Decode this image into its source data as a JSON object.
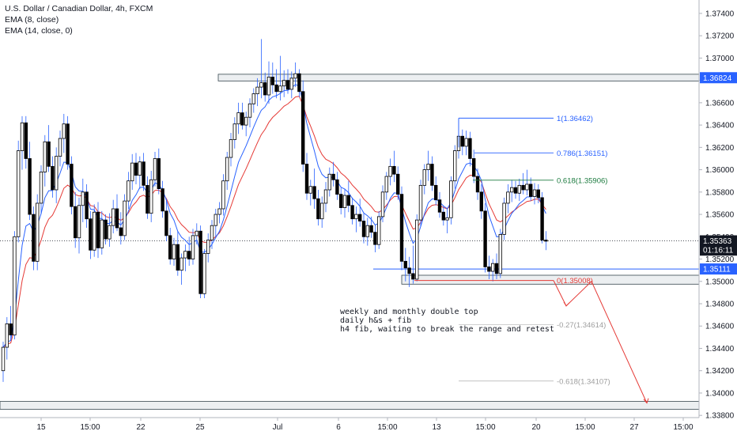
{
  "legend": {
    "symbol_line": "U.S. Dollar / Canadian Dollar, 4h, FXCM",
    "ema_fast": "EMA (8, close)",
    "ema_slow": "EMA (14, close, 0)"
  },
  "colors": {
    "candle": "#000000",
    "ema_fast": "#2962ff",
    "ema_slow": "#e53935",
    "fib_blue": "#2962ff",
    "fib_green": "#1b7a3e",
    "fib_gray": "#9e9e9e",
    "projection": "#e53935",
    "price_tag_blue": "#2962ff",
    "price_tag_black": "#131722"
  },
  "chart_data": {
    "type": "candlestick",
    "symbol": "U.S. Dollar / Canadian Dollar",
    "interval": "4h",
    "source": "FXCM",
    "ylim": [
      1.3378,
      1.3752
    ],
    "y_ticks": [
      "1.37400",
      "1.37200",
      "1.37000",
      "1.36800",
      "1.36600",
      "1.36400",
      "1.36200",
      "1.36000",
      "1.35800",
      "1.35600",
      "1.35400",
      "1.35200",
      "1.35000",
      "1.34800",
      "1.34600",
      "1.34400",
      "1.34200",
      "1.34000",
      "1.33800"
    ],
    "x_ticks": [
      "15",
      "15:00",
      "22",
      "25",
      "Jul",
      "6",
      "15:00",
      "13",
      "15:00",
      "20",
      "15:00",
      "27",
      "15:00"
    ],
    "price_tags": [
      {
        "label": "1.36824",
        "value": 1.36824,
        "style": "blue"
      },
      {
        "label": "1.35363",
        "value": 1.35363,
        "style": "black"
      },
      {
        "label": "01:16:11",
        "value": 1.3528,
        "style": "black"
      },
      {
        "label": "1.35111",
        "value": 1.35111,
        "style": "blue"
      }
    ],
    "last_price": 1.35363,
    "resistance_zone": [
      1.36795,
      1.36855
    ],
    "support_zone": [
      1.34975,
      1.35055
    ],
    "bottom_zone": [
      1.33855,
      1.33925
    ],
    "fib_levels": [
      {
        "label": "1(1.36462)",
        "value": 1.36462,
        "color": "blue"
      },
      {
        "label": "0.786(1.36151)",
        "value": 1.36151,
        "color": "blue"
      },
      {
        "label": "0.618(1.35906)",
        "value": 1.35906,
        "color": "green"
      },
      {
        "label": "0(1.35008)",
        "value": 1.35008,
        "color": "red"
      },
      {
        "label": "-0.27(1.34614)",
        "value": 1.34614,
        "color": "gray"
      },
      {
        "label": "-0.618(1.34107)",
        "value": 1.34107,
        "color": "gray"
      }
    ],
    "support_line": 1.35111,
    "annotation": [
      "weekly and monthly double top",
      "daily h&s + fib",
      "h4 fib, waiting to break the range and retest"
    ],
    "projection_path": [
      [
        1.35008
      ],
      [
        1.3478
      ],
      [
        1.35
      ],
      [
        1.3391
      ]
    ],
    "candles": [
      [
        1.342,
        1.3446,
        1.341,
        1.3441
      ],
      [
        1.3441,
        1.3468,
        1.343,
        1.3462
      ],
      [
        1.3462,
        1.3478,
        1.3447,
        1.3452
      ],
      [
        1.3452,
        1.3545,
        1.3448,
        1.354
      ],
      [
        1.354,
        1.3626,
        1.3535,
        1.3617
      ],
      [
        1.3617,
        1.3648,
        1.36,
        1.3642
      ],
      [
        1.3642,
        1.3648,
        1.3601,
        1.361
      ],
      [
        1.361,
        1.3625,
        1.3555,
        1.356
      ],
      [
        1.356,
        1.3567,
        1.351,
        1.3518
      ],
      [
        1.3518,
        1.3578,
        1.351,
        1.357
      ],
      [
        1.357,
        1.3604,
        1.356,
        1.3598
      ],
      [
        1.3598,
        1.3631,
        1.3585,
        1.3625
      ],
      [
        1.3625,
        1.364,
        1.3598,
        1.3603
      ],
      [
        1.3603,
        1.3612,
        1.3575,
        1.3582
      ],
      [
        1.3582,
        1.362,
        1.357,
        1.3612
      ],
      [
        1.3612,
        1.3635,
        1.3603,
        1.3628
      ],
      [
        1.3628,
        1.365,
        1.3615,
        1.3641
      ],
      [
        1.3641,
        1.3648,
        1.36,
        1.3605
      ],
      [
        1.3605,
        1.3612,
        1.356,
        1.3567
      ],
      [
        1.3567,
        1.358,
        1.353,
        1.3539
      ],
      [
        1.3539,
        1.3575,
        1.3525,
        1.3568
      ],
      [
        1.3568,
        1.3592,
        1.3553,
        1.358
      ],
      [
        1.358,
        1.3587,
        1.3548,
        1.3556
      ],
      [
        1.3556,
        1.3563,
        1.352,
        1.3528
      ],
      [
        1.3528,
        1.3569,
        1.3522,
        1.3562
      ],
      [
        1.3562,
        1.3571,
        1.3521,
        1.353
      ],
      [
        1.353,
        1.3563,
        1.3524,
        1.3555
      ],
      [
        1.3555,
        1.356,
        1.3533,
        1.3538
      ],
      [
        1.3538,
        1.3561,
        1.3531,
        1.355
      ],
      [
        1.355,
        1.3573,
        1.3543,
        1.3565
      ],
      [
        1.3565,
        1.3578,
        1.3545,
        1.3548
      ],
      [
        1.3548,
        1.3562,
        1.3533,
        1.3541
      ],
      [
        1.3541,
        1.3578,
        1.3537,
        1.3572
      ],
      [
        1.3572,
        1.3598,
        1.3565,
        1.359
      ],
      [
        1.359,
        1.3614,
        1.3582,
        1.3606
      ],
      [
        1.3606,
        1.3615,
        1.3587,
        1.3595
      ],
      [
        1.3595,
        1.3612,
        1.3583,
        1.3607
      ],
      [
        1.3607,
        1.3615,
        1.3581,
        1.3586
      ],
      [
        1.3586,
        1.3594,
        1.3556,
        1.3561
      ],
      [
        1.3561,
        1.3599,
        1.3553,
        1.3591
      ],
      [
        1.3591,
        1.3616,
        1.3585,
        1.361
      ],
      [
        1.361,
        1.3619,
        1.3578,
        1.3583
      ],
      [
        1.3583,
        1.359,
        1.3557,
        1.3563
      ],
      [
        1.3563,
        1.3574,
        1.3536,
        1.3541
      ],
      [
        1.3541,
        1.3548,
        1.3515,
        1.352
      ],
      [
        1.352,
        1.3539,
        1.3514,
        1.3533
      ],
      [
        1.3533,
        1.3545,
        1.3505,
        1.351
      ],
      [
        1.351,
        1.3525,
        1.3497,
        1.3521
      ],
      [
        1.3521,
        1.3533,
        1.3509,
        1.3527
      ],
      [
        1.3527,
        1.354,
        1.3514,
        1.352
      ],
      [
        1.352,
        1.3547,
        1.3515,
        1.3541
      ],
      [
        1.3541,
        1.3552,
        1.3533,
        1.3545
      ],
      [
        1.3545,
        1.355,
        1.3485,
        1.3489
      ],
      [
        1.3489,
        1.3529,
        1.3485,
        1.3525
      ],
      [
        1.3525,
        1.3543,
        1.3517,
        1.3537
      ],
      [
        1.3537,
        1.3555,
        1.3529,
        1.355
      ],
      [
        1.355,
        1.3565,
        1.354,
        1.356
      ],
      [
        1.356,
        1.3571,
        1.3552,
        1.3565
      ],
      [
        1.3565,
        1.3596,
        1.3559,
        1.359
      ],
      [
        1.359,
        1.3616,
        1.3582,
        1.3611
      ],
      [
        1.3611,
        1.3633,
        1.3603,
        1.3627
      ],
      [
        1.3627,
        1.3647,
        1.3619,
        1.3641
      ],
      [
        1.3641,
        1.366,
        1.3632,
        1.3651
      ],
      [
        1.3651,
        1.366,
        1.3636,
        1.364
      ],
      [
        1.364,
        1.3652,
        1.363,
        1.3647
      ],
      [
        1.3647,
        1.3664,
        1.3638,
        1.3659
      ],
      [
        1.3659,
        1.3673,
        1.3651,
        1.3668
      ],
      [
        1.3668,
        1.3682,
        1.3657,
        1.3674
      ],
      [
        1.3674,
        1.3717,
        1.3664,
        1.3678
      ],
      [
        1.3678,
        1.3687,
        1.3661,
        1.3667
      ],
      [
        1.3667,
        1.3697,
        1.3659,
        1.3683
      ],
      [
        1.3683,
        1.3696,
        1.3668,
        1.3676
      ],
      [
        1.3676,
        1.369,
        1.3664,
        1.367
      ],
      [
        1.367,
        1.3702,
        1.3662,
        1.3675
      ],
      [
        1.3675,
        1.3689,
        1.3665,
        1.368
      ],
      [
        1.368,
        1.369,
        1.3668,
        1.3672
      ],
      [
        1.3672,
        1.3688,
        1.3664,
        1.3682
      ],
      [
        1.3682,
        1.3696,
        1.3674,
        1.3686
      ],
      [
        1.3686,
        1.369,
        1.3665,
        1.367
      ],
      [
        1.367,
        1.368,
        1.3598,
        1.3605
      ],
      [
        1.3605,
        1.3615,
        1.3573,
        1.3579
      ],
      [
        1.3579,
        1.3591,
        1.3568,
        1.3585
      ],
      [
        1.3585,
        1.3601,
        1.3565,
        1.3574
      ],
      [
        1.3574,
        1.3582,
        1.355,
        1.3556
      ],
      [
        1.3556,
        1.3576,
        1.3548,
        1.357
      ],
      [
        1.357,
        1.3589,
        1.3562,
        1.3582
      ],
      [
        1.3582,
        1.3602,
        1.3576,
        1.3596
      ],
      [
        1.3596,
        1.3607,
        1.3585,
        1.3591
      ],
      [
        1.3591,
        1.3598,
        1.3573,
        1.3578
      ],
      [
        1.3578,
        1.3584,
        1.356,
        1.3566
      ],
      [
        1.3566,
        1.3583,
        1.3557,
        1.3577
      ],
      [
        1.3577,
        1.359,
        1.3562,
        1.3568
      ],
      [
        1.3568,
        1.3575,
        1.3551,
        1.3556
      ],
      [
        1.3556,
        1.3567,
        1.3544,
        1.356
      ],
      [
        1.356,
        1.3574,
        1.3549,
        1.3554
      ],
      [
        1.3554,
        1.3561,
        1.3534,
        1.354
      ],
      [
        1.354,
        1.3557,
        1.3532,
        1.355
      ],
      [
        1.355,
        1.3558,
        1.3539,
        1.3544
      ],
      [
        1.3544,
        1.3551,
        1.3526,
        1.3533
      ],
      [
        1.3533,
        1.3563,
        1.3529,
        1.3558
      ],
      [
        1.3558,
        1.3586,
        1.3553,
        1.358
      ],
      [
        1.358,
        1.3598,
        1.3573,
        1.3594
      ],
      [
        1.3594,
        1.361,
        1.3586,
        1.3603
      ],
      [
        1.3603,
        1.3617,
        1.3589,
        1.3596
      ],
      [
        1.3596,
        1.3603,
        1.3573,
        1.3578
      ],
      [
        1.3578,
        1.3585,
        1.351,
        1.3518
      ],
      [
        1.3518,
        1.353,
        1.35,
        1.3512
      ],
      [
        1.3512,
        1.3522,
        1.3495,
        1.3507
      ],
      [
        1.3507,
        1.3532,
        1.3498,
        1.3502
      ],
      [
        1.3502,
        1.356,
        1.35,
        1.3555
      ],
      [
        1.3555,
        1.3591,
        1.3549,
        1.3586
      ],
      [
        1.3586,
        1.3605,
        1.3578,
        1.36
      ],
      [
        1.36,
        1.3617,
        1.359,
        1.3605
      ],
      [
        1.3605,
        1.3612,
        1.3581,
        1.3586
      ],
      [
        1.3586,
        1.3594,
        1.3568,
        1.3573
      ],
      [
        1.3573,
        1.358,
        1.3557,
        1.3562
      ],
      [
        1.3562,
        1.3568,
        1.355,
        1.3555
      ],
      [
        1.3555,
        1.3565,
        1.3543,
        1.3557
      ],
      [
        1.3557,
        1.3594,
        1.3551,
        1.359
      ],
      [
        1.359,
        1.3622,
        1.3583,
        1.3617
      ],
      [
        1.3617,
        1.3646,
        1.361,
        1.363
      ],
      [
        1.363,
        1.3636,
        1.3613,
        1.3621
      ],
      [
        1.3621,
        1.3635,
        1.3613,
        1.3628
      ],
      [
        1.3628,
        1.3634,
        1.3603,
        1.361
      ],
      [
        1.361,
        1.3618,
        1.3588,
        1.3594
      ],
      [
        1.3594,
        1.3601,
        1.3573,
        1.358
      ],
      [
        1.358,
        1.3587,
        1.3556,
        1.3563
      ],
      [
        1.3563,
        1.357,
        1.3508,
        1.3513
      ],
      [
        1.3513,
        1.3523,
        1.3502,
        1.3509
      ],
      [
        1.3509,
        1.352,
        1.35,
        1.3516
      ],
      [
        1.3516,
        1.3525,
        1.3502,
        1.3507
      ],
      [
        1.3507,
        1.3547,
        1.3503,
        1.3542
      ],
      [
        1.3542,
        1.3575,
        1.3537,
        1.357
      ],
      [
        1.357,
        1.3587,
        1.3561,
        1.358
      ],
      [
        1.358,
        1.3591,
        1.3571,
        1.3584
      ],
      [
        1.3584,
        1.359,
        1.3574,
        1.3579
      ],
      [
        1.3579,
        1.3592,
        1.3572,
        1.3586
      ],
      [
        1.3586,
        1.3597,
        1.3578,
        1.3582
      ],
      [
        1.3582,
        1.36,
        1.3577,
        1.3587
      ],
      [
        1.3587,
        1.3593,
        1.3572,
        1.3576
      ],
      [
        1.3576,
        1.3588,
        1.3569,
        1.3582
      ],
      [
        1.3582,
        1.3587,
        1.357,
        1.3575
      ],
      [
        1.3575,
        1.358,
        1.3534,
        1.3537
      ],
      [
        1.3537,
        1.3545,
        1.3528,
        1.3536
      ]
    ]
  }
}
